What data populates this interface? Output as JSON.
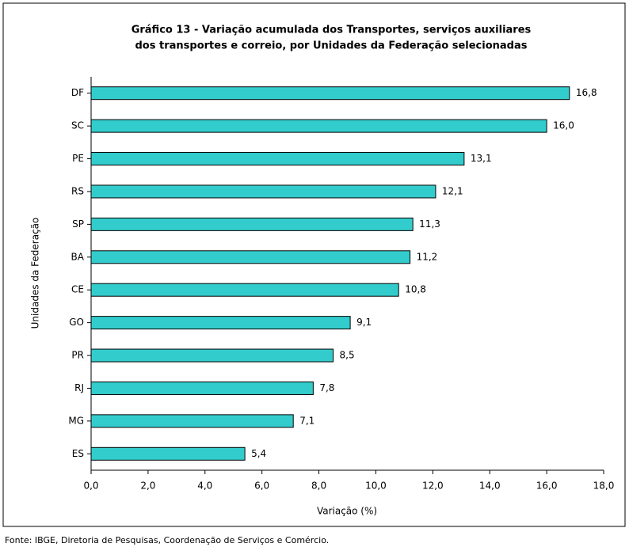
{
  "chart_data": {
    "type": "barh",
    "title": [
      "Gráfico  13 - Variação acumulada dos Transportes, serviços auxiliares",
      "dos transportes e correio,  por Unidades da Federação selecionadas"
    ],
    "ylabel": "Unidades da Federação",
    "xlabel": "Variação (%)",
    "source": "Fonte: IBGE, Diretoria de Pesquisas, Coordenação de Serviços e Comércio.",
    "categories": [
      "DF",
      "SC",
      "PE",
      "RS",
      "SP",
      "BA",
      "CE",
      "GO",
      "PR",
      "RJ",
      "MG",
      "ES"
    ],
    "values": [
      16.8,
      16.0,
      13.1,
      12.1,
      11.3,
      11.2,
      10.8,
      9.1,
      8.5,
      7.8,
      7.1,
      5.4
    ],
    "value_labels": [
      "16,8",
      "16,0",
      "13,1",
      "12,1",
      "11,3",
      "11,2",
      "10,8",
      "9,1",
      "8,5",
      "7,8",
      "7,1",
      "5,4"
    ],
    "color": "#33cccc",
    "xlim": [
      0,
      18
    ],
    "xticks": [
      {
        "value": 0,
        "label": "0,0"
      },
      {
        "value": 2,
        "label": "2,0"
      },
      {
        "value": 4,
        "label": "4,0"
      },
      {
        "value": 6,
        "label": "6,0"
      },
      {
        "value": 8,
        "label": "8,0"
      },
      {
        "value": 10,
        "label": "10,0"
      },
      {
        "value": 12,
        "label": "12,0"
      },
      {
        "value": 14,
        "label": "14,0"
      },
      {
        "value": 16,
        "label": "16,0"
      },
      {
        "value": 18,
        "label": "18,0"
      }
    ],
    "grid": false
  }
}
